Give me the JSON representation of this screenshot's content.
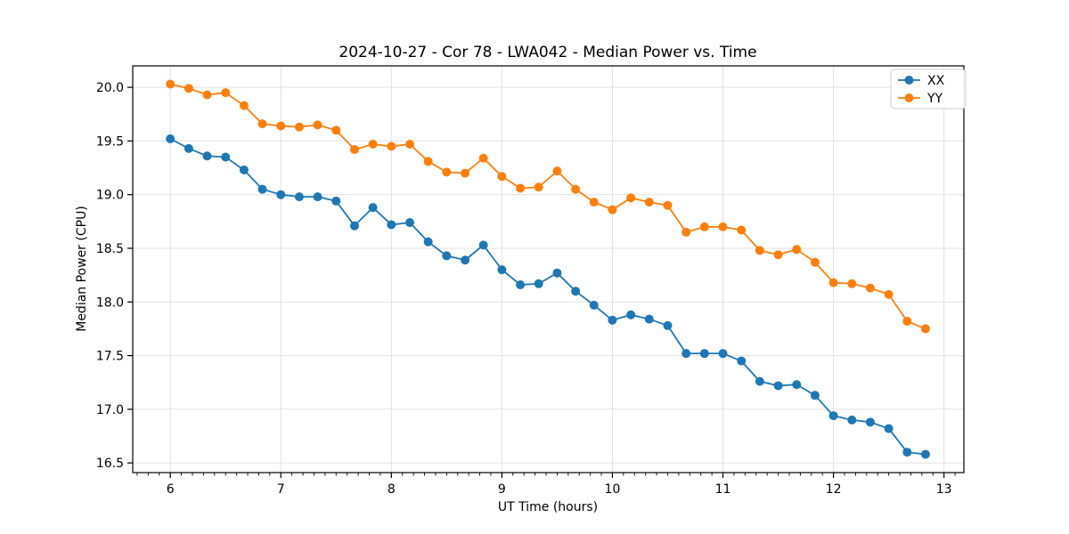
{
  "figure": {
    "background": "#ffffff"
  },
  "chart_data": {
    "type": "line",
    "title": "2024-10-27 - Cor 78 - LWA042 - Median Power vs. Time",
    "xlabel": "UT Time (hours)",
    "ylabel": "Median Power (CPU)",
    "xlim": [
      5.66,
      13.18
    ],
    "ylim": [
      16.41,
      20.2
    ],
    "x_ticks": [
      6,
      7,
      8,
      9,
      10,
      11,
      12,
      13
    ],
    "y_ticks": [
      16.5,
      17.0,
      17.5,
      18.0,
      18.5,
      19.0,
      19.5,
      20.0
    ],
    "x_minor_tick_step": 0.1,
    "grid": true,
    "grid_color": "#e0e0e0",
    "spine_color": "#000000",
    "legend_position": "upper right",
    "marker": "circle",
    "marker_radius": 5,
    "line_width": 1.8,
    "x": [
      6.0,
      6.167,
      6.333,
      6.5,
      6.667,
      6.833,
      7.0,
      7.167,
      7.333,
      7.5,
      7.667,
      7.833,
      8.0,
      8.167,
      8.333,
      8.5,
      8.667,
      8.833,
      9.0,
      9.167,
      9.333,
      9.5,
      9.667,
      9.833,
      10.0,
      10.167,
      10.333,
      10.5,
      10.667,
      10.833,
      11.0,
      11.167,
      11.333,
      11.5,
      11.667,
      11.833,
      12.0,
      12.167,
      12.333,
      12.5,
      12.667,
      12.833
    ],
    "series": [
      {
        "name": "XX",
        "color": "#1f77b4",
        "values": [
          19.52,
          19.43,
          19.36,
          19.35,
          19.23,
          19.05,
          19.0,
          18.98,
          18.98,
          18.94,
          18.71,
          18.88,
          18.72,
          18.74,
          18.56,
          18.43,
          18.39,
          18.53,
          18.3,
          18.16,
          18.17,
          18.27,
          18.1,
          17.97,
          17.83,
          17.88,
          17.84,
          17.78,
          17.52,
          17.52,
          17.52,
          17.45,
          17.26,
          17.22,
          17.23,
          17.13,
          16.94,
          16.9,
          16.88,
          16.82,
          16.6,
          16.58
        ]
      },
      {
        "name": "YY",
        "color": "#ff7f0e",
        "values": [
          20.03,
          19.99,
          19.93,
          19.95,
          19.83,
          19.66,
          19.64,
          19.63,
          19.65,
          19.6,
          19.42,
          19.47,
          19.45,
          19.47,
          19.31,
          19.21,
          19.2,
          19.34,
          19.17,
          19.06,
          19.07,
          19.22,
          19.05,
          18.93,
          18.86,
          18.97,
          18.93,
          18.9,
          18.65,
          18.7,
          18.7,
          18.67,
          18.48,
          18.44,
          18.49,
          18.37,
          18.18,
          18.17,
          18.13,
          18.07,
          17.82,
          17.75
        ]
      }
    ]
  }
}
